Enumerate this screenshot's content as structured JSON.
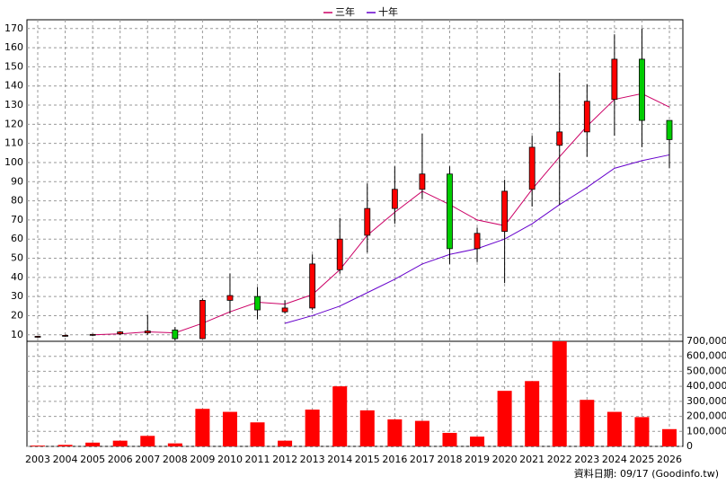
{
  "chart_data": {
    "type": "candlestick",
    "categories": [
      "2003",
      "2004",
      "2005",
      "2006",
      "2007",
      "2008",
      "2009",
      "2010",
      "2011",
      "2012",
      "2013",
      "2014",
      "2015",
      "2016",
      "2017",
      "2018",
      "2019",
      "2020",
      "2021",
      "2022",
      "2023",
      "2024",
      "2025",
      "2026"
    ],
    "open": [
      9,
      9.5,
      9.8,
      10.5,
      11,
      12.5,
      8,
      28,
      30,
      22,
      24,
      44,
      62,
      76,
      86,
      94,
      55,
      64,
      86,
      109,
      116,
      133,
      154,
      122
    ],
    "high": [
      9.5,
      10,
      10.5,
      12,
      20.5,
      14,
      29,
      42,
      35,
      28,
      52,
      71,
      89,
      98,
      115,
      98,
      66,
      91,
      114,
      147,
      141,
      167,
      170,
      122
    ],
    "low": [
      8.5,
      9,
      9.3,
      10,
      10,
      7,
      8,
      21,
      18,
      21,
      23,
      42,
      53,
      68,
      81,
      47,
      48,
      37,
      77,
      78,
      103,
      114,
      108,
      97
    ],
    "close": [
      9.2,
      9.7,
      10.2,
      11.5,
      12,
      8,
      28,
      30.5,
      23,
      24,
      47,
      60,
      76,
      86,
      94,
      55,
      63,
      85,
      108,
      116,
      132,
      154,
      122,
      112
    ],
    "up_color": "#ff0000",
    "down_color": "#00cc00",
    "ylim": [
      6.6,
      174.6
    ],
    "yticks": [
      10,
      20,
      30,
      40,
      50,
      60,
      70,
      80,
      90,
      100,
      110,
      120,
      130,
      140,
      150,
      160,
      170
    ],
    "grid": true,
    "series": [
      {
        "name": "三年",
        "color": "#cc0066",
        "values": [
          null,
          null,
          10,
          10.5,
          11.5,
          11,
          16,
          22,
          27,
          26,
          31,
          44,
          62,
          74,
          85,
          78,
          70,
          67,
          86,
          103,
          119,
          133,
          136,
          129
        ]
      },
      {
        "name": "十年",
        "color": "#6600cc",
        "values": [
          null,
          null,
          null,
          null,
          null,
          null,
          null,
          null,
          null,
          16,
          20,
          25,
          32,
          39,
          47,
          52,
          55,
          60,
          68,
          78,
          87,
          97,
          101,
          104
        ]
      }
    ],
    "volume": {
      "color": "#ff0000",
      "values": [
        5000,
        10000,
        25000,
        38000,
        70000,
        20000,
        250000,
        230000,
        160000,
        38000,
        245000,
        400000,
        240000,
        180000,
        170000,
        90000,
        65000,
        370000,
        435000,
        700000,
        310000,
        230000,
        195000,
        115000
      ],
      "ylim": [
        0,
        700000
      ],
      "yticks": [
        0,
        {
          "value": 100000,
          "label": "100,000"
        },
        {
          "value": 200000,
          "label": "200,000"
        },
        {
          "value": 300000,
          "label": "300,000"
        },
        {
          "value": 400000,
          "label": "400,000"
        },
        {
          "value": 500000,
          "label": "500,000"
        },
        {
          "value": 600000,
          "label": "600,000"
        },
        {
          "value": 700000,
          "label": "700,000"
        }
      ]
    },
    "footer": "資料日期: 09/17 (Goodinfo.tw)"
  }
}
